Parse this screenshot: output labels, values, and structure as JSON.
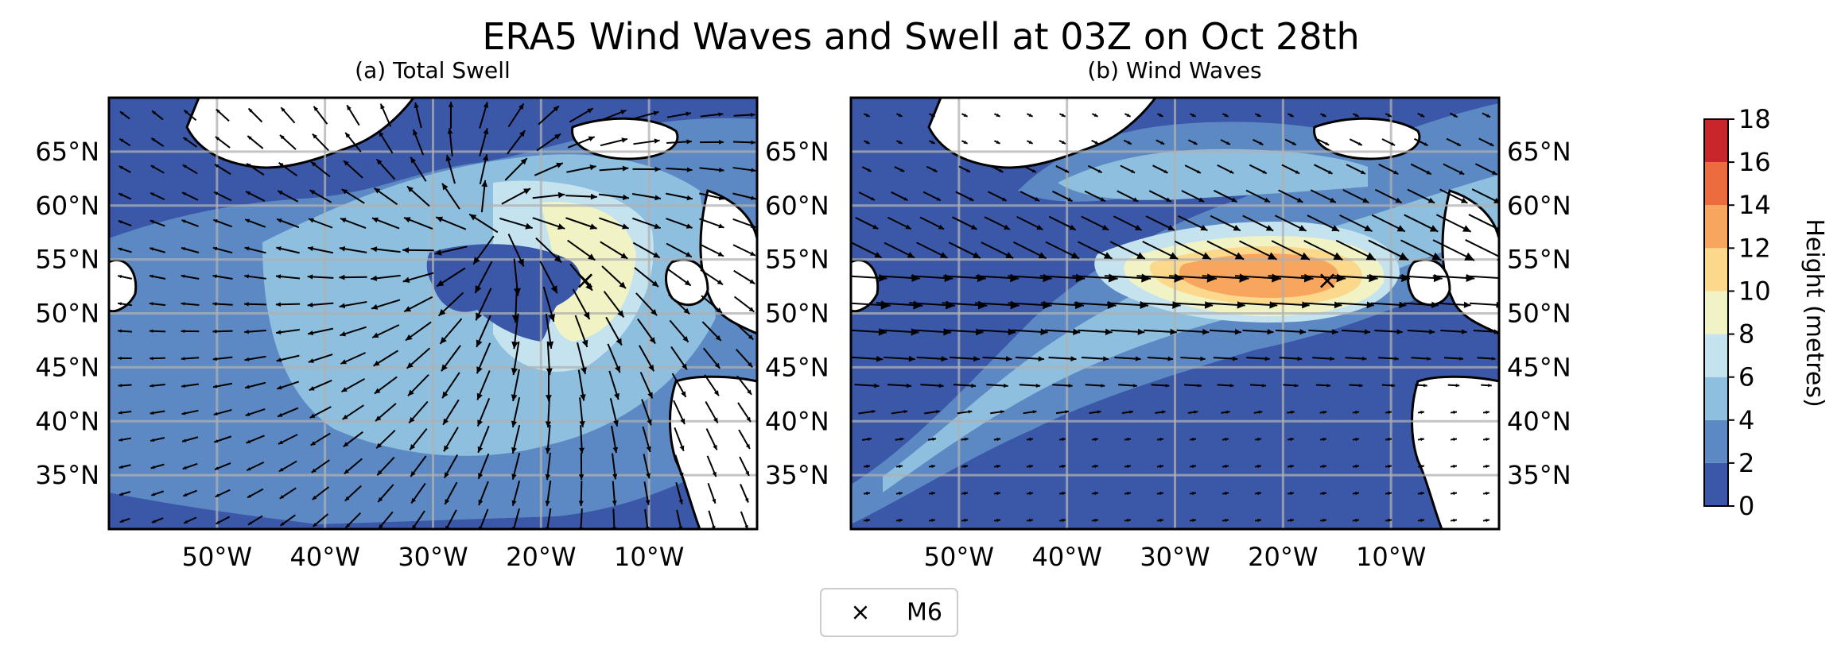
{
  "figure": {
    "title": "ERA5 Wind Waves and Swell at 03Z on Oct 28th"
  },
  "panels": [
    {
      "id": "a",
      "subtitle": "(a) Total Swell"
    },
    {
      "id": "b",
      "subtitle": "(b) Wind Waves"
    }
  ],
  "axes": {
    "lat_ticks": [
      "65°N",
      "60°N",
      "55°N",
      "50°N",
      "45°N",
      "40°N",
      "35°N"
    ],
    "lon_ticks": [
      "50°W",
      "40°W",
      "30°W",
      "20°W",
      "10°W"
    ],
    "lat_values": [
      65,
      60,
      55,
      50,
      45,
      40,
      35
    ],
    "lon_values": [
      -50,
      -40,
      -30,
      -20,
      -10
    ],
    "lon_range": [
      -60,
      0
    ],
    "lat_range": [
      30,
      70
    ],
    "gridlines": true
  },
  "marker": {
    "label": "M6",
    "symbol": "×",
    "lon": -15.9,
    "lat": 53.1
  },
  "legend": {
    "label": "M6",
    "symbol": "×",
    "placement": "bottom-center"
  },
  "colorbar": {
    "label": "Height (metres)",
    "ticks": [
      "0",
      "2",
      "4",
      "6",
      "8",
      "10",
      "12",
      "14",
      "16",
      "18"
    ],
    "levels": [
      0,
      2,
      4,
      6,
      8,
      10,
      12,
      14,
      16,
      18
    ],
    "colors": [
      "#3b57a8",
      "#5c89c4",
      "#8fbfdf",
      "#c4e3ef",
      "#f2f3c5",
      "#fbd88c",
      "#f8a55e",
      "#ec6b3f",
      "#c8262a"
    ]
  }
}
